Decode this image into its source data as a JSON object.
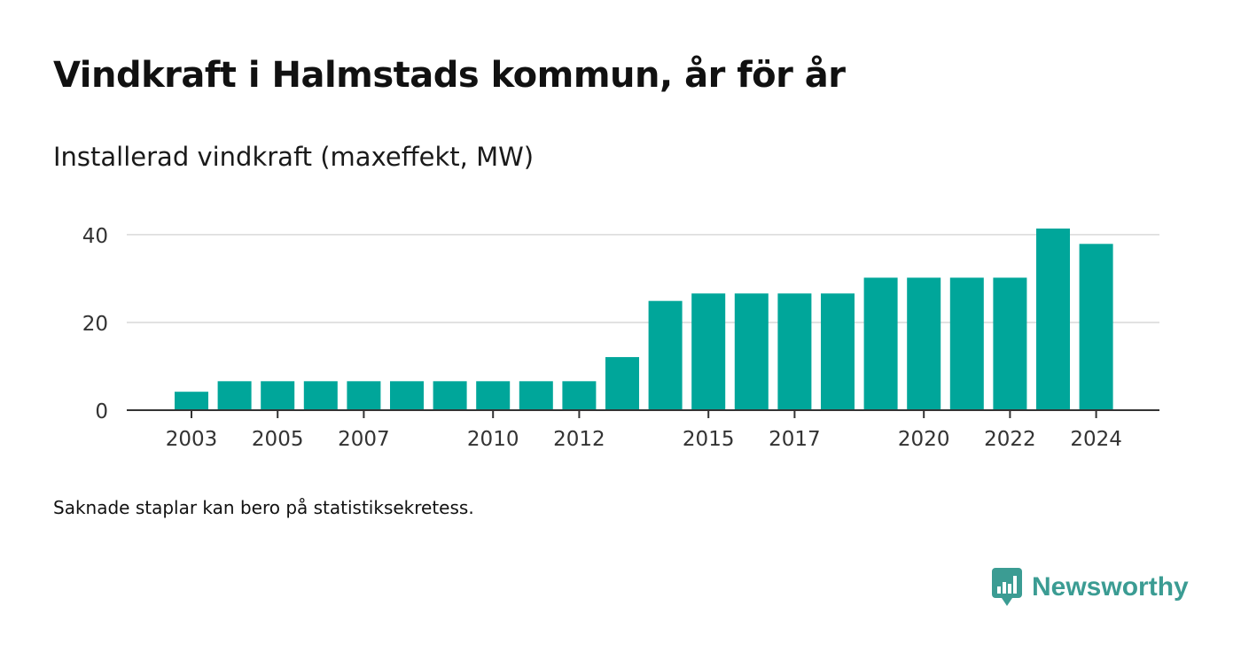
{
  "title": "Vindkraft i Halmstads kommun, år för år",
  "subtitle": "Installerad vindkraft (maxeffekt, MW)",
  "footnote": "Saknade staplar kan bero på statistiksekretess.",
  "brand": {
    "name": "Newsworthy",
    "icon": "newsworthy-logo-icon",
    "color": "#3b9c93"
  },
  "chart_data": {
    "type": "bar",
    "title": "Vindkraft i Halmstads kommun, år för år",
    "ylabel": "Installerad vindkraft (maxeffekt, MW)",
    "xlabel": "",
    "categories": [
      "2003",
      "2004",
      "2005",
      "2006",
      "2007",
      "2008",
      "2009",
      "2010",
      "2011",
      "2012",
      "2013",
      "2014",
      "2015",
      "2016",
      "2017",
      "2018",
      "2019",
      "2020",
      "2021",
      "2022",
      "2023",
      "2024"
    ],
    "values": [
      4.2,
      6.6,
      6.6,
      6.6,
      6.6,
      6.6,
      6.6,
      6.6,
      6.6,
      6.6,
      12.1,
      24.9,
      26.6,
      26.6,
      26.6,
      26.6,
      30.2,
      30.2,
      30.2,
      30.2,
      41.4,
      37.9
    ],
    "x_tick_labels": [
      "2003",
      "2005",
      "2007",
      "2010",
      "2012",
      "2015",
      "2017",
      "2020",
      "2022",
      "2024"
    ],
    "y_ticks": [
      0,
      20,
      40
    ],
    "ylim": [
      0,
      42
    ],
    "grid": "horizontal",
    "bar_color": "#00a69a",
    "legend": "none"
  }
}
